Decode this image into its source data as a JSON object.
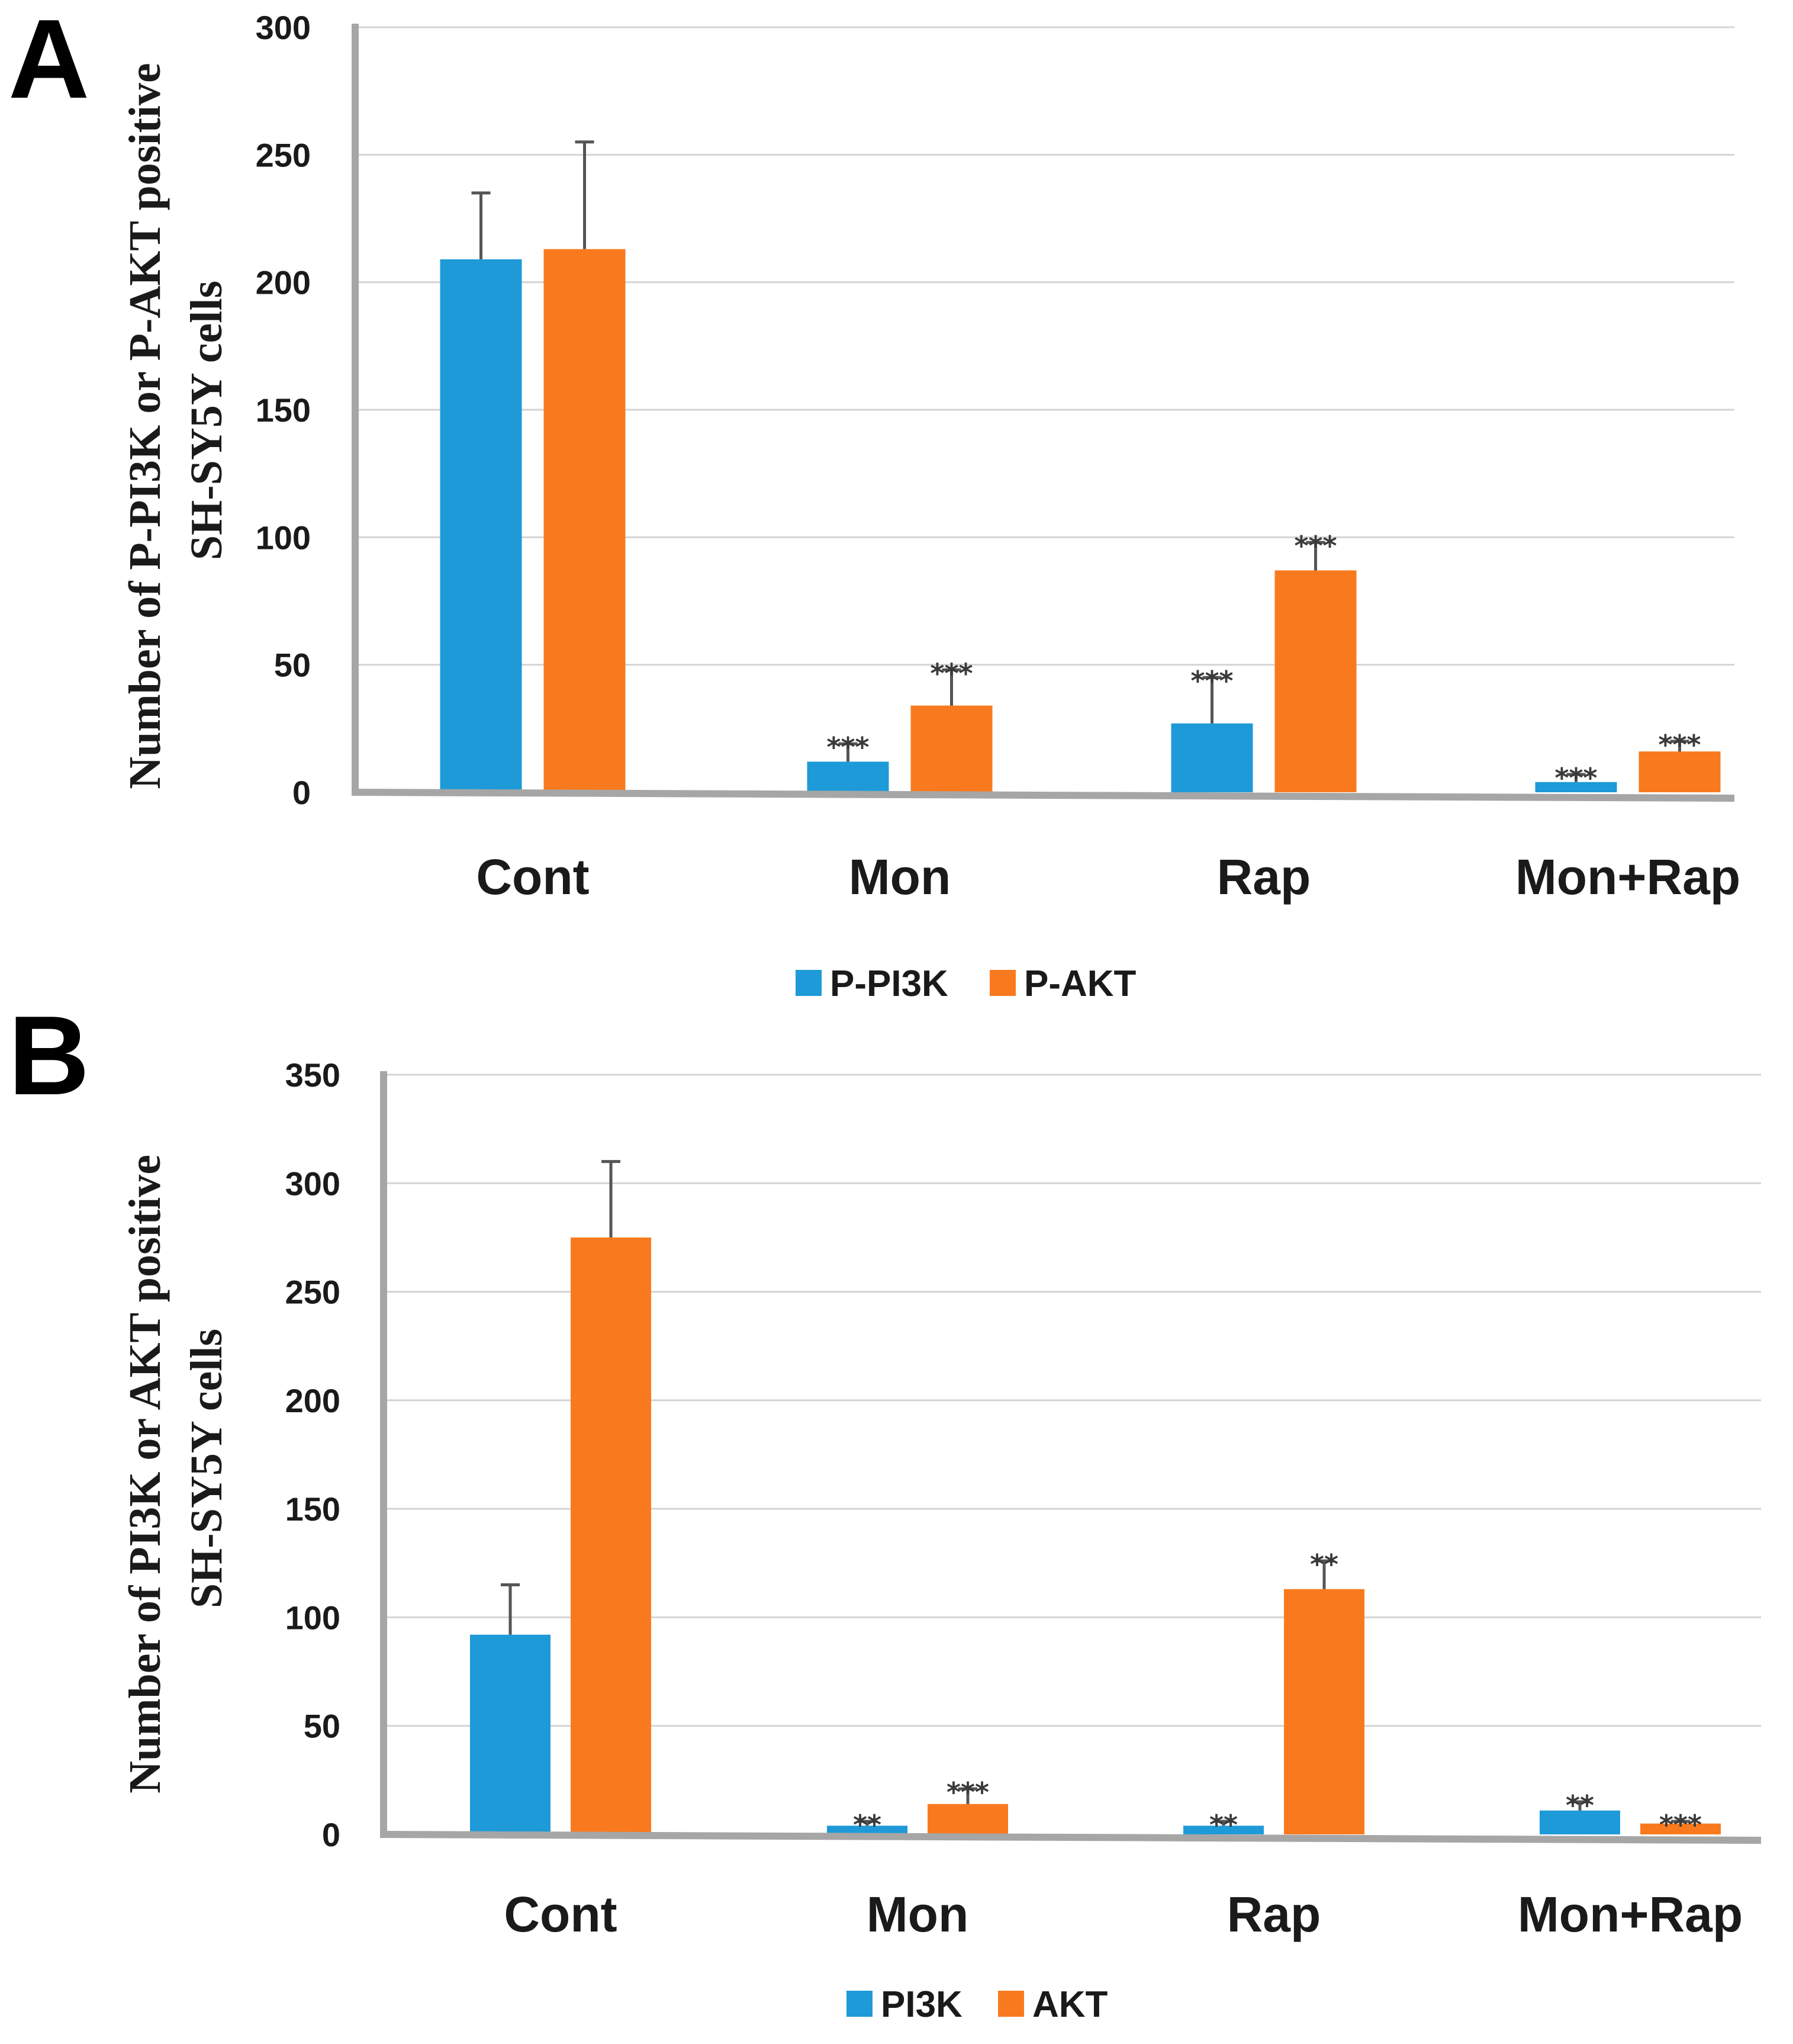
{
  "colors": {
    "series1": "#1e9ad8",
    "series2": "#f97a1e",
    "grid": "#d4d4d4",
    "axis": "#a6a6a6",
    "errorbar": "#555555"
  },
  "chart_data": [
    {
      "type": "bar",
      "panel": "A",
      "categories": [
        "Cont",
        "Mon",
        "Rap",
        "Mon+Rap"
      ],
      "ylabel_lines": [
        "Number of P-PI3K or P-AKT positive",
        "SH-SY5Y cells"
      ],
      "ylim": [
        0,
        300
      ],
      "yticks": [
        0,
        50,
        100,
        150,
        200,
        250,
        300
      ],
      "grid": true,
      "legend_position": "bottom-center",
      "series": [
        {
          "name": "P-PI3K",
          "color": "#1e9ad8",
          "values": [
            209,
            12,
            27,
            4
          ],
          "errors": [
            26,
            7,
            18,
            3
          ],
          "significance": [
            "",
            "***",
            "***",
            "***"
          ]
        },
        {
          "name": "P-AKT",
          "color": "#f97a1e",
          "values": [
            213,
            34,
            87,
            16
          ],
          "errors": [
            42,
            14,
            11,
            4
          ],
          "significance": [
            "",
            "***",
            "***",
            "***"
          ]
        }
      ]
    },
    {
      "type": "bar",
      "panel": "B",
      "categories": [
        "Cont",
        "Mon",
        "Rap",
        "Mon+Rap"
      ],
      "ylabel_lines": [
        "Number of PI3K or AKT positive",
        "SH-SY5Y cells"
      ],
      "ylim": [
        0,
        350
      ],
      "yticks": [
        0,
        50,
        100,
        150,
        200,
        250,
        300,
        350
      ],
      "grid": true,
      "legend_position": "bottom-center",
      "series": [
        {
          "name": "PI3K",
          "color": "#1e9ad8",
          "values": [
            92,
            4,
            4,
            11
          ],
          "errors": [
            23,
            2,
            2,
            4
          ],
          "significance": [
            "",
            "**",
            "**",
            "**"
          ]
        },
        {
          "name": "AKT",
          "color": "#f97a1e",
          "values": [
            275,
            14,
            113,
            5
          ],
          "errors": [
            35,
            7,
            13,
            1
          ],
          "significance": [
            "",
            "***",
            "**",
            "***"
          ]
        }
      ]
    }
  ]
}
